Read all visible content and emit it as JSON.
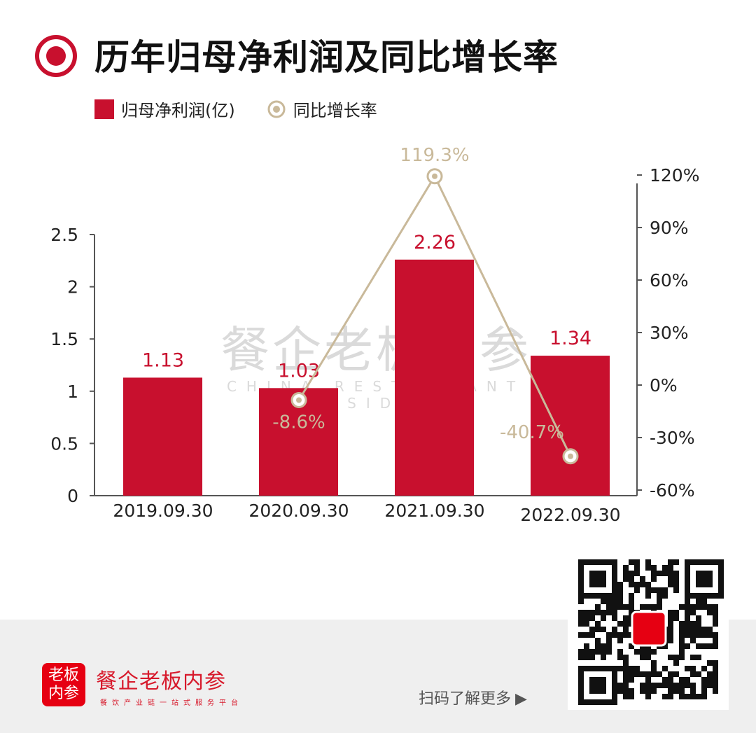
{
  "title": "历年归母净利润及同比增长率",
  "colors": {
    "bar": "#c8102e",
    "line": "#c9b99a",
    "title_icon": "#c8102e"
  },
  "watermark": {
    "cn": "餐企老板内参",
    "en": "CHINA RESTAURANT INSIDER"
  },
  "chart_data": {
    "type": "bar+line",
    "categories": [
      "2019.09.30",
      "2020.09.30",
      "2021.09.30",
      "2022.09.30"
    ],
    "series": [
      {
        "name": "归母净利润(亿)",
        "type": "bar",
        "axis": "left",
        "values": [
          1.13,
          1.03,
          2.26,
          1.34
        ],
        "labels": [
          "1.13",
          "1.03",
          "2.26",
          "1.34"
        ]
      },
      {
        "name": "同比增长率",
        "type": "line",
        "axis": "right",
        "values": [
          null,
          -8.6,
          119.3,
          -40.7
        ],
        "labels": [
          "",
          "-8.6%",
          "119.3%",
          "-40.7%"
        ]
      }
    ],
    "left_axis": {
      "ylim": [
        0,
        2.5
      ],
      "ticks": [
        "0",
        "0.5",
        "1",
        "1.5",
        "2",
        "2.5"
      ]
    },
    "right_axis": {
      "ylim": [
        -60,
        120
      ],
      "ticks": [
        "-60%",
        "-30%",
        "0%",
        "30%",
        "60%",
        "90%",
        "120%"
      ]
    },
    "legend": "top-left",
    "grid": false
  },
  "footer": {
    "brand": "餐企老板内参",
    "slogan": "餐饮产业链一站式服务平台",
    "logo_text": "老板内参",
    "scan": "扫码了解更多"
  }
}
